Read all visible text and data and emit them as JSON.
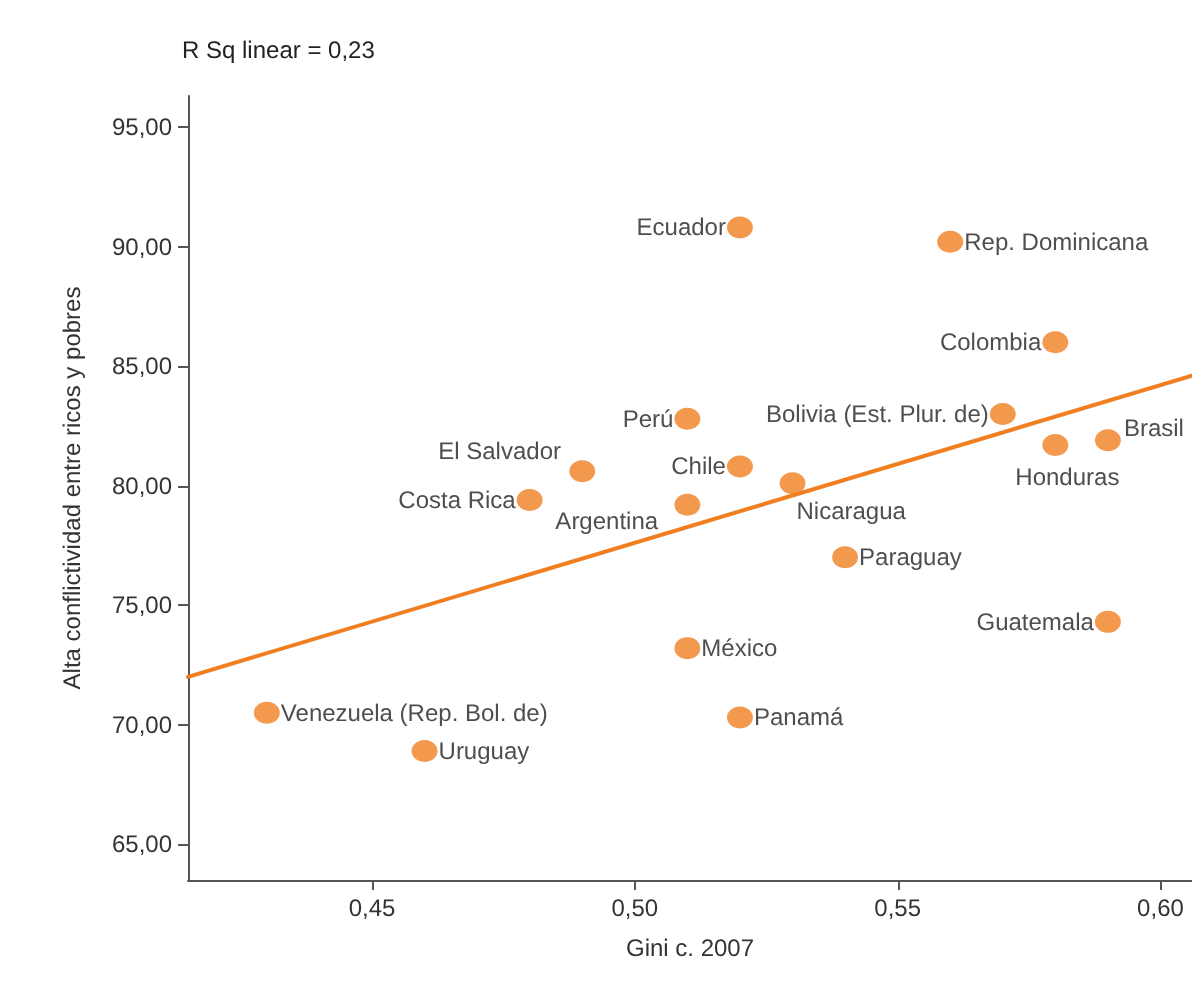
{
  "chart_data": {
    "type": "scatter",
    "xlabel": "Gini c. 2007",
    "ylabel": "Alta conflictividad entre ricos y pobres",
    "xlim": [
      0.415,
      0.606
    ],
    "ylim": [
      63.5,
      96.3
    ],
    "xticks": [
      {
        "value": 0.45,
        "label": "0,45"
      },
      {
        "value": 0.5,
        "label": "0,50"
      },
      {
        "value": 0.55,
        "label": "0,55"
      },
      {
        "value": 0.6,
        "label": "0,60"
      }
    ],
    "yticks": [
      {
        "value": 65,
        "label": "65,00"
      },
      {
        "value": 70,
        "label": "70,00"
      },
      {
        "value": 75,
        "label": "75,00"
      },
      {
        "value": 80,
        "label": "80,00"
      },
      {
        "value": 85,
        "label": "85,00"
      },
      {
        "value": 90,
        "label": "90,00"
      },
      {
        "value": 95,
        "label": "95,00"
      }
    ],
    "series": [
      {
        "marker": "circle",
        "color": "#f07f22",
        "x": [
          0.52,
          0.56,
          0.58,
          0.51,
          0.57,
          0.59,
          0.58,
          0.52,
          0.49,
          0.53,
          0.48,
          0.51,
          0.54,
          0.59,
          0.51,
          0.43,
          0.52,
          0.46
        ],
        "values": [
          90.8,
          90.2,
          86.0,
          82.8,
          83.0,
          81.9,
          81.7,
          80.8,
          80.6,
          80.1,
          79.4,
          79.2,
          77.0,
          74.3,
          73.2,
          70.5,
          70.3,
          68.9
        ]
      },
      {
        "type": "line",
        "marker": "none",
        "color": "#f07f22",
        "x": [
          0.415,
          0.606
        ],
        "values": [
          72.0,
          84.6
        ]
      }
    ],
    "annotations": [
      {
        "text": "Ecuador",
        "x": 0.52,
        "y": 90.8
      },
      {
        "text": "Rep. Dominicana",
        "x": 0.56,
        "y": 90.2
      },
      {
        "text": "Colombia",
        "x": 0.58,
        "y": 86.0
      },
      {
        "text": "Perú",
        "x": 0.51,
        "y": 82.8
      },
      {
        "text": "Bolivia (Est. Plur. de)",
        "x": 0.57,
        "y": 83.0
      },
      {
        "text": "Brasil",
        "x": 0.59,
        "y": 81.9
      },
      {
        "text": "Honduras",
        "x": 0.58,
        "y": 81.7
      },
      {
        "text": "Chile",
        "x": 0.52,
        "y": 80.8
      },
      {
        "text": "El Salvador",
        "x": 0.49,
        "y": 80.6
      },
      {
        "text": "Nicaragua",
        "x": 0.53,
        "y": 80.1
      },
      {
        "text": "Costa Rica",
        "x": 0.48,
        "y": 79.4
      },
      {
        "text": "Argentina",
        "x": 0.51,
        "y": 79.2
      },
      {
        "text": "Paraguay",
        "x": 0.54,
        "y": 77.0
      },
      {
        "text": "Guatemala",
        "x": 0.59,
        "y": 74.3
      },
      {
        "text": "México",
        "x": 0.51,
        "y": 73.2
      },
      {
        "text": "Venezuela (Rep. Bol. de)",
        "x": 0.43,
        "y": 70.5
      },
      {
        "text": "Panamá",
        "x": 0.52,
        "y": 70.3
      },
      {
        "text": "Uruguay",
        "x": 0.46,
        "y": 68.9
      },
      "R Sq linear = 0,23"
    ]
  }
}
